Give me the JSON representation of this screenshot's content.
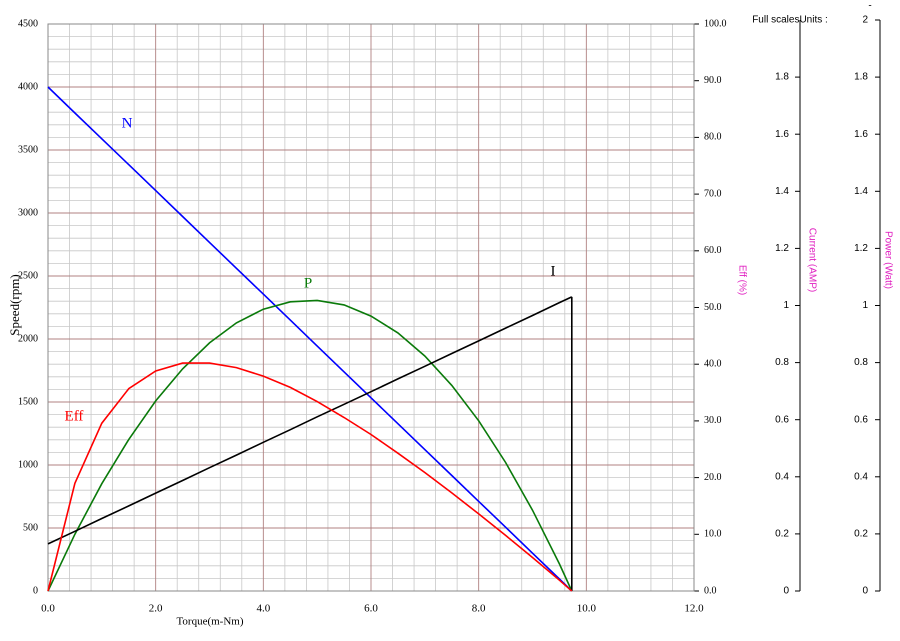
{
  "chart_data": {
    "type": "line",
    "x_label": "Torque(m-Nm)",
    "y_label": "Speed(rpm)",
    "y2_label": "Eff (%)",
    "y3_label": "Current (AMP)",
    "y4_label": "Power (Watt)",
    "y3_header": "Full scalesUnits :",
    "y4_header": "-",
    "grid": true,
    "x": [
      0,
      0.5,
      1,
      1.5,
      2,
      2.5,
      3,
      3.5,
      4,
      4.5,
      5,
      5.5,
      6,
      6.5,
      7,
      7.5,
      8,
      8.5,
      9,
      9.5,
      9.73
    ],
    "xlim": [
      0,
      12
    ],
    "xticks": [
      {
        "value": 0,
        "label": "0.0"
      },
      {
        "value": 2,
        "label": "2.0"
      },
      {
        "value": 4,
        "label": "4.0"
      },
      {
        "value": 6,
        "label": "6.0"
      },
      {
        "value": 8,
        "label": "8.0"
      },
      {
        "value": 10,
        "label": "10.0"
      },
      {
        "value": 12,
        "label": "12.0"
      }
    ],
    "ylim": [
      0,
      4500
    ],
    "yticks": [
      0,
      500,
      1000,
      1500,
      2000,
      2500,
      3000,
      3500,
      4000,
      4500
    ],
    "y2lim": [
      0,
      100
    ],
    "y2ticks": [
      {
        "value": 0,
        "label": "0.0"
      },
      {
        "value": 10,
        "label": "10.0"
      },
      {
        "value": 20,
        "label": "20.0"
      },
      {
        "value": 30,
        "label": "30.0"
      },
      {
        "value": 40,
        "label": "40.0"
      },
      {
        "value": 50,
        "label": "50.0"
      },
      {
        "value": 60,
        "label": "60.0"
      },
      {
        "value": 70,
        "label": "70.0"
      },
      {
        "value": 80,
        "label": "80.0"
      },
      {
        "value": 90,
        "label": "90.0"
      },
      {
        "value": 100,
        "label": "100.0"
      }
    ],
    "y3lim": [
      0,
      2
    ],
    "y3ticks": [
      0,
      0.2,
      0.4,
      0.6,
      0.8,
      1,
      1.2,
      1.4,
      1.6,
      1.8
    ],
    "y4lim": [
      0,
      2
    ],
    "y4ticks": [
      0,
      0.2,
      0.4,
      0.6,
      0.8,
      1,
      1.2,
      1.4,
      1.6,
      1.8,
      2
    ],
    "series": [
      {
        "name": "N",
        "color": "#0000ff",
        "axis": "y",
        "values": [
          4000,
          3794,
          3589,
          3383,
          3178,
          2972,
          2767,
          2561,
          2356,
          2150,
          1944,
          1739,
          1533,
          1328,
          1122,
          917,
          711,
          506,
          300,
          95,
          0
        ]
      },
      {
        "name": "P",
        "color": "#0a7a0a",
        "axis": "y4",
        "values": [
          0,
          0.199,
          0.376,
          0.531,
          0.666,
          0.778,
          0.869,
          0.939,
          0.987,
          1.013,
          1.018,
          1.002,
          0.963,
          0.904,
          0.823,
          0.72,
          0.596,
          0.45,
          0.283,
          0.095,
          0
        ]
      },
      {
        "name": "I",
        "color": "#000000",
        "axis": "y3",
        "values": [
          0.165,
          0.209,
          0.254,
          0.298,
          0.343,
          0.387,
          0.432,
          0.476,
          0.521,
          0.565,
          0.61,
          0.654,
          0.698,
          0.743,
          0.787,
          0.832,
          0.876,
          0.921,
          0.965,
          1.01,
          1.03
        ]
      },
      {
        "name": "Eff",
        "color": "#ff0000",
        "axis": "y2",
        "values": [
          0,
          19.0,
          29.6,
          35.7,
          38.8,
          40.2,
          40.2,
          39.4,
          37.9,
          35.9,
          33.4,
          30.6,
          27.6,
          24.3,
          20.9,
          17.3,
          13.6,
          9.8,
          5.9,
          1.9,
          0
        ]
      }
    ]
  }
}
